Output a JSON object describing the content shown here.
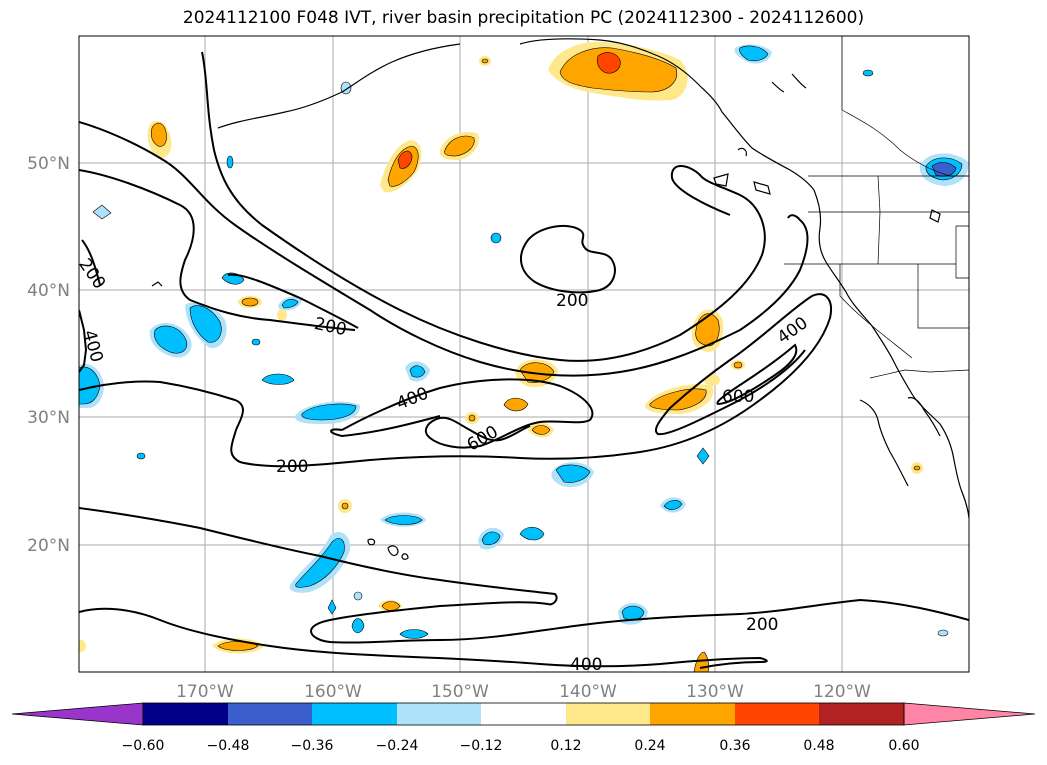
{
  "title": "2024112100 F048 IVT, river basin precipitation PC (2024112300 - 2024112600)",
  "lat_labels": [
    "50°N",
    "40°N",
    "30°N",
    "20°N"
  ],
  "lon_labels": [
    "170°W",
    "160°W",
    "150°W",
    "140°W",
    "130°W",
    "120°W"
  ],
  "contour_labels": [
    "200",
    "400",
    "200",
    "200",
    "400",
    "600",
    "200",
    "400",
    "600",
    "200",
    "400"
  ],
  "colorbar": {
    "ticks": [
      "−0.60",
      "−0.48",
      "−0.36",
      "−0.24",
      "−0.12",
      "0.12",
      "0.24",
      "0.36",
      "0.48",
      "0.60"
    ],
    "colors": [
      "#9a35cc",
      "#00008b",
      "#3a5fcd",
      "#00bfff",
      "#ade2fa",
      "#ffffff",
      "#ffe88a",
      "#ffa500",
      "#ff4500",
      "#b22222",
      "#ff85a6",
      "#ff85a6"
    ]
  }
}
